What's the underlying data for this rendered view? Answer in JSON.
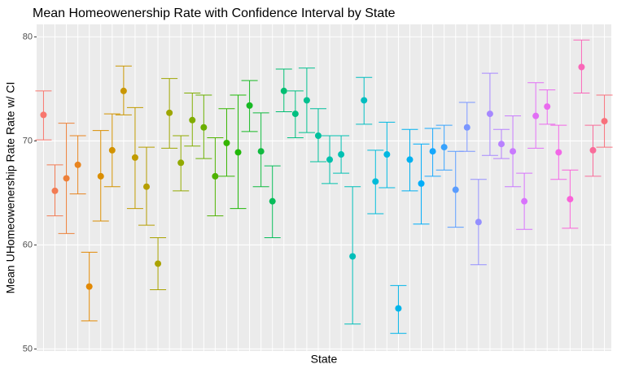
{
  "chart_data": {
    "type": "errorbar",
    "title": "Mean Homeowenership Rate with Confidence Interval by State",
    "xlabel": "State",
    "ylabel": "Mean UHomeowenership Rate Rate w/ CI",
    "categories": [
      null,
      null,
      null,
      null,
      null,
      null,
      null,
      null,
      null,
      null,
      null,
      null,
      null,
      null,
      null,
      null,
      null,
      null,
      null,
      null,
      null,
      null,
      null,
      null,
      null,
      null,
      null,
      null,
      null,
      null,
      null,
      null,
      null,
      null,
      null,
      null,
      null,
      null,
      null,
      null,
      null,
      null,
      null,
      null,
      null,
      null,
      null,
      null,
      null,
      null
    ],
    "values": [
      72.5,
      65.2,
      66.4,
      67.7,
      56.0,
      66.6,
      69.1,
      74.8,
      68.4,
      65.6,
      58.2,
      72.7,
      67.9,
      72.0,
      71.3,
      66.6,
      69.8,
      68.9,
      73.4,
      69.0,
      64.2,
      74.8,
      72.6,
      73.9,
      70.5,
      68.2,
      68.7,
      58.9,
      73.9,
      66.1,
      68.7,
      53.9,
      68.2,
      65.9,
      69.0,
      69.4,
      65.3,
      71.3,
      62.2,
      72.6,
      69.7,
      69.0,
      64.2,
      72.4,
      73.3,
      68.9,
      64.4,
      77.1,
      69.1,
      71.9
    ],
    "upper": [
      74.8,
      67.7,
      71.7,
      70.5,
      59.3,
      71.0,
      72.6,
      77.2,
      73.2,
      69.4,
      60.7,
      76.0,
      70.5,
      74.6,
      74.4,
      70.3,
      73.1,
      74.4,
      75.8,
      72.7,
      67.6,
      76.9,
      74.8,
      77.0,
      73.1,
      70.5,
      70.5,
      65.6,
      76.1,
      69.1,
      71.8,
      56.1,
      71.1,
      69.7,
      71.2,
      71.5,
      69.0,
      73.7,
      66.3,
      76.5,
      71.1,
      72.4,
      66.9,
      75.6,
      74.9,
      71.5,
      67.2,
      79.7,
      71.5,
      74.4
    ],
    "lower": [
      70.1,
      62.8,
      61.1,
      64.9,
      52.7,
      62.3,
      65.6,
      72.5,
      63.5,
      61.9,
      55.7,
      69.3,
      65.2,
      69.5,
      68.3,
      62.8,
      66.6,
      63.5,
      70.9,
      65.6,
      60.7,
      72.8,
      70.3,
      70.8,
      68.0,
      65.9,
      66.9,
      52.4,
      71.6,
      63.0,
      65.5,
      51.5,
      65.2,
      62.0,
      66.6,
      67.2,
      61.7,
      69.0,
      58.1,
      68.6,
      68.3,
      65.6,
      61.5,
      69.3,
      71.6,
      66.3,
      61.6,
      74.6,
      66.6,
      69.4
    ],
    "colors": [
      "#F8766D",
      "#F27B53",
      "#ED8039",
      "#E8841F",
      "#E28904",
      "#DA8E00",
      "#D29200",
      "#C99600",
      "#C19B00",
      "#B69E00",
      "#AAA200",
      "#9EA600",
      "#92A900",
      "#80AC00",
      "#69AF00",
      "#4EB200",
      "#35B500",
      "#21B809",
      "#18B924",
      "#10BA3F",
      "#07BC5A",
      "#00BE72",
      "#00BF80",
      "#00C08F",
      "#00C09D",
      "#00C1AB",
      "#00C0B2",
      "#00BEB9",
      "#00BDC0",
      "#00BBD9",
      "#00B8E1",
      "#00B4E9",
      "#00B1F0",
      "#00ADF9",
      "#16A8FD",
      "#38A2FD",
      "#599CFE",
      "#7A96FF",
      "#948FFF",
      "#A688FF",
      "#B881FF",
      "#C97AFE",
      "#D873FC",
      "#E16FF5",
      "#E96AEE",
      "#F266E7",
      "#F963D8",
      "#F967B9",
      "#F96C9A",
      "#F8717C"
    ],
    "ylim": [
      49.8,
      81.2
    ],
    "yticks": [
      50,
      60,
      70,
      80
    ],
    "grid": true
  }
}
